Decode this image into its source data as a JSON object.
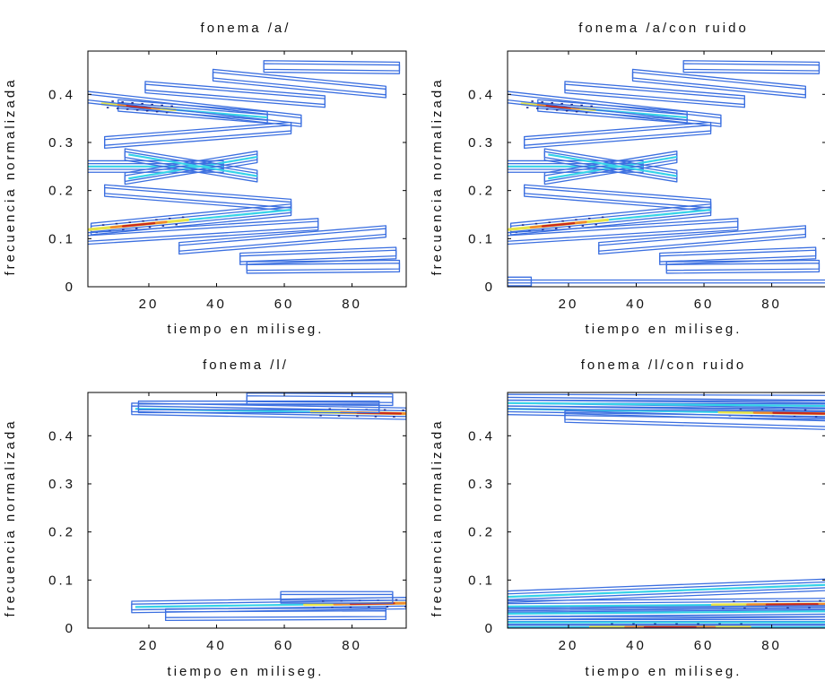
{
  "chart_data": [
    {
      "type": "contour",
      "title": "fonema /a/",
      "xlabel": "tiempo en miliseg.",
      "ylabel": "frecuencia normalizada",
      "xlim": [
        2,
        96
      ],
      "ylim": [
        0,
        0.49
      ],
      "xticks": [
        20,
        40,
        60,
        80
      ],
      "yticks": [
        0,
        0.1,
        0.2,
        0.3,
        0.4
      ],
      "xtick_labels": [
        "20",
        "40",
        "60",
        "80"
      ],
      "ytick_labels": [
        "0",
        "0.1",
        "0.2",
        "0.3",
        "0.4"
      ],
      "colormap": [
        "#1b2a8c",
        "#3b6fe0",
        "#36d3e8",
        "#e6e34a",
        "#f08a2e",
        "#c8281c"
      ],
      "grid": false,
      "ridges": [
        {
          "x0": 12,
          "x1": 55,
          "y0": 0.377,
          "y1": 0.352,
          "peak": 17,
          "intensity": 1.0
        },
        {
          "x0": 2,
          "x1": 65,
          "y0": 0.395,
          "y1": 0.345,
          "peak": 20,
          "intensity": 0.25
        },
        {
          "x0": 20,
          "x1": 72,
          "y0": 0.415,
          "y1": 0.385,
          "peak": 40,
          "intensity": 0.15
        },
        {
          "x0": 40,
          "x1": 90,
          "y0": 0.44,
          "y1": 0.405,
          "peak": 60,
          "intensity": 0.12
        },
        {
          "x0": 55,
          "x1": 94,
          "y0": 0.458,
          "y1": 0.455,
          "peak": 80,
          "intensity": 0.12
        },
        {
          "x0": 2,
          "x1": 42,
          "y0": 0.25,
          "y1": 0.25,
          "peak": 30,
          "intensity": 0.5
        },
        {
          "x0": 14,
          "x1": 52,
          "y0": 0.225,
          "y1": 0.27,
          "peak": 30,
          "intensity": 0.35
        },
        {
          "x0": 14,
          "x1": 52,
          "y0": 0.275,
          "y1": 0.23,
          "peak": 30,
          "intensity": 0.35
        },
        {
          "x0": 8,
          "x1": 62,
          "y0": 0.3,
          "y1": 0.33,
          "peak": 30,
          "intensity": 0.2
        },
        {
          "x0": 8,
          "x1": 62,
          "y0": 0.2,
          "y1": 0.17,
          "peak": 30,
          "intensity": 0.2
        },
        {
          "x0": 4,
          "x1": 62,
          "y0": 0.12,
          "y1": 0.16,
          "peak": 17,
          "intensity": 1.0
        },
        {
          "x0": 2,
          "x1": 70,
          "y0": 0.1,
          "y1": 0.13,
          "peak": 20,
          "intensity": 0.25
        },
        {
          "x0": 30,
          "x1": 90,
          "y0": 0.08,
          "y1": 0.115,
          "peak": 60,
          "intensity": 0.15
        },
        {
          "x0": 48,
          "x1": 93,
          "y0": 0.058,
          "y1": 0.07,
          "peak": 75,
          "intensity": 0.12
        },
        {
          "x0": 50,
          "x1": 94,
          "y0": 0.04,
          "y1": 0.043,
          "peak": 80,
          "intensity": 0.12
        }
      ]
    },
    {
      "type": "contour",
      "title": "fonema /a/con ruido",
      "xlabel": "tiempo en miliseg.",
      "ylabel": "frecuencia normalizada",
      "xlim": [
        2,
        96
      ],
      "ylim": [
        0,
        0.49
      ],
      "xticks": [
        20,
        40,
        60,
        80
      ],
      "yticks": [
        0,
        0.1,
        0.2,
        0.3,
        0.4
      ],
      "xtick_labels": [
        "20",
        "40",
        "60",
        "80"
      ],
      "ytick_labels": [
        "0",
        "0.1",
        "0.2",
        "0.3",
        "0.4"
      ],
      "colormap": [
        "#1b2a8c",
        "#3b6fe0",
        "#36d3e8",
        "#e6e34a",
        "#f08a2e",
        "#c8281c"
      ],
      "grid": false,
      "ridges": [
        {
          "x0": 12,
          "x1": 55,
          "y0": 0.377,
          "y1": 0.352,
          "peak": 17,
          "intensity": 1.0
        },
        {
          "x0": 2,
          "x1": 65,
          "y0": 0.395,
          "y1": 0.345,
          "peak": 20,
          "intensity": 0.25
        },
        {
          "x0": 20,
          "x1": 72,
          "y0": 0.415,
          "y1": 0.385,
          "peak": 40,
          "intensity": 0.15
        },
        {
          "x0": 40,
          "x1": 90,
          "y0": 0.44,
          "y1": 0.405,
          "peak": 60,
          "intensity": 0.12
        },
        {
          "x0": 55,
          "x1": 94,
          "y0": 0.458,
          "y1": 0.455,
          "peak": 80,
          "intensity": 0.12
        },
        {
          "x0": 2,
          "x1": 42,
          "y0": 0.25,
          "y1": 0.25,
          "peak": 30,
          "intensity": 0.5
        },
        {
          "x0": 14,
          "x1": 52,
          "y0": 0.225,
          "y1": 0.27,
          "peak": 30,
          "intensity": 0.35
        },
        {
          "x0": 14,
          "x1": 52,
          "y0": 0.275,
          "y1": 0.23,
          "peak": 30,
          "intensity": 0.35
        },
        {
          "x0": 8,
          "x1": 62,
          "y0": 0.3,
          "y1": 0.33,
          "peak": 30,
          "intensity": 0.2
        },
        {
          "x0": 8,
          "x1": 62,
          "y0": 0.2,
          "y1": 0.17,
          "peak": 30,
          "intensity": 0.2
        },
        {
          "x0": 4,
          "x1": 62,
          "y0": 0.12,
          "y1": 0.16,
          "peak": 17,
          "intensity": 1.0
        },
        {
          "x0": 2,
          "x1": 70,
          "y0": 0.1,
          "y1": 0.13,
          "peak": 20,
          "intensity": 0.25
        },
        {
          "x0": 30,
          "x1": 90,
          "y0": 0.08,
          "y1": 0.115,
          "peak": 60,
          "intensity": 0.15
        },
        {
          "x0": 48,
          "x1": 93,
          "y0": 0.058,
          "y1": 0.07,
          "peak": 75,
          "intensity": 0.12
        },
        {
          "x0": 50,
          "x1": 94,
          "y0": 0.04,
          "y1": 0.043,
          "peak": 80,
          "intensity": 0.12
        },
        {
          "x0": 2,
          "x1": 96,
          "y0": 0.002,
          "y1": 0.002,
          "peak": 50,
          "intensity": 0.2
        },
        {
          "x0": 3,
          "x1": 9,
          "y0": 0.008,
          "y1": 0.008,
          "peak": 5,
          "intensity": 0.12
        }
      ]
    },
    {
      "type": "contour",
      "title": "fonema /l/",
      "xlabel": "tiempo en miliseg.",
      "ylabel": "frecuencia normalizada",
      "xlim": [
        2,
        96
      ],
      "ylim": [
        0,
        0.49
      ],
      "xticks": [
        20,
        40,
        60,
        80
      ],
      "yticks": [
        0,
        0.1,
        0.2,
        0.3,
        0.4
      ],
      "xtick_labels": [
        "20",
        "40",
        "60",
        "80"
      ],
      "ytick_labels": [
        "0",
        "0.1",
        "0.2",
        "0.3",
        "0.4"
      ],
      "colormap": [
        "#1b2a8c",
        "#3b6fe0",
        "#36d3e8",
        "#e6e34a",
        "#f08a2e",
        "#c8281c"
      ],
      "grid": false,
      "ridges": [
        {
          "x0": 16,
          "x1": 96,
          "y0": 0.456,
          "y1": 0.446,
          "peak": 88,
          "intensity": 1.0
        },
        {
          "x0": 18,
          "x1": 88,
          "y0": 0.46,
          "y1": 0.46,
          "peak": 80,
          "intensity": 0.2
        },
        {
          "x0": 50,
          "x1": 92,
          "y0": 0.477,
          "y1": 0.475,
          "peak": 80,
          "intensity": 0.15
        },
        {
          "x0": 16,
          "x1": 96,
          "y0": 0.044,
          "y1": 0.052,
          "peak": 86,
          "intensity": 1.0
        },
        {
          "x0": 60,
          "x1": 92,
          "y0": 0.064,
          "y1": 0.064,
          "peak": 80,
          "intensity": 0.2
        },
        {
          "x0": 26,
          "x1": 90,
          "y0": 0.028,
          "y1": 0.03,
          "peak": 60,
          "intensity": 0.15
        }
      ]
    },
    {
      "type": "contour",
      "title": "fonema /l/con ruido",
      "xlabel": "tiempo en miliseg.",
      "ylabel": "frecuencia normalizada",
      "xlim": [
        2,
        96
      ],
      "ylim": [
        0,
        0.49
      ],
      "xticks": [
        20,
        40,
        60,
        80
      ],
      "yticks": [
        0,
        0.1,
        0.2,
        0.3,
        0.4
      ],
      "xtick_labels": [
        "20",
        "40",
        "60",
        "80"
      ],
      "ytick_labels": [
        "0",
        "0.1",
        "0.2",
        "0.3",
        "0.4"
      ],
      "colormap": [
        "#1b2a8c",
        "#3b6fe0",
        "#36d3e8",
        "#e6e34a",
        "#f08a2e",
        "#c8281c"
      ],
      "grid": false,
      "ridges": [
        {
          "x0": 2,
          "x1": 96,
          "y0": 0.456,
          "y1": 0.446,
          "peak": 88,
          "intensity": 1.0
        },
        {
          "x0": 2,
          "x1": 96,
          "y0": 0.48,
          "y1": 0.478,
          "peak": 50,
          "intensity": 0.25
        },
        {
          "x0": 2,
          "x1": 96,
          "y0": 0.468,
          "y1": 0.462,
          "peak": 60,
          "intensity": 0.3
        },
        {
          "x0": 20,
          "x1": 96,
          "y0": 0.44,
          "y1": 0.425,
          "peak": 80,
          "intensity": 0.25
        },
        {
          "x0": 2,
          "x1": 96,
          "y0": 0.045,
          "y1": 0.05,
          "peak": 86,
          "intensity": 1.0
        },
        {
          "x0": 2,
          "x1": 96,
          "y0": 0.065,
          "y1": 0.09,
          "peak": 80,
          "intensity": 0.3
        },
        {
          "x0": 2,
          "x1": 96,
          "y0": 0.03,
          "y1": 0.035,
          "peak": 70,
          "intensity": 0.3
        },
        {
          "x0": 2,
          "x1": 96,
          "y0": 0.002,
          "y1": 0.002,
          "peak": 50,
          "intensity": 1.0
        },
        {
          "x0": 2,
          "x1": 96,
          "y0": 0.012,
          "y1": 0.012,
          "peak": 50,
          "intensity": 0.5
        }
      ]
    }
  ]
}
